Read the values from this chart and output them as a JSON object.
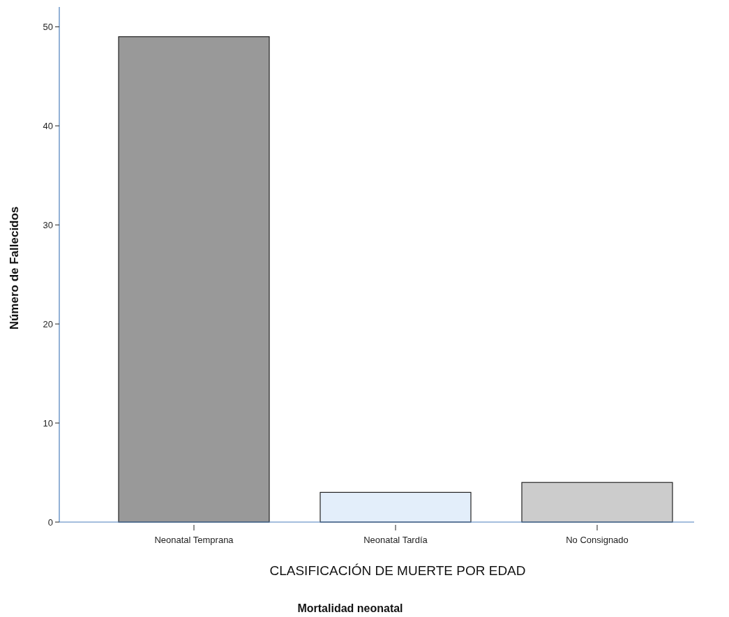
{
  "chart_data": {
    "type": "bar",
    "xlabel": "CLASIFICACIÓN DE MUERTE POR EDAD",
    "ylabel": "Número de Fallecidos",
    "categories": [
      "Neonatal Temprana",
      "Neonatal Tardía",
      "No Consignado"
    ],
    "values": [
      49,
      3,
      4
    ],
    "colors": [
      "#999999",
      "#e3eefa",
      "#cccccc"
    ],
    "ylim": [
      0,
      52
    ],
    "yticks": [
      0,
      10,
      20,
      30,
      40,
      50
    ],
    "grid": false,
    "annotations": [
      "Mortalidad neonatal"
    ]
  }
}
